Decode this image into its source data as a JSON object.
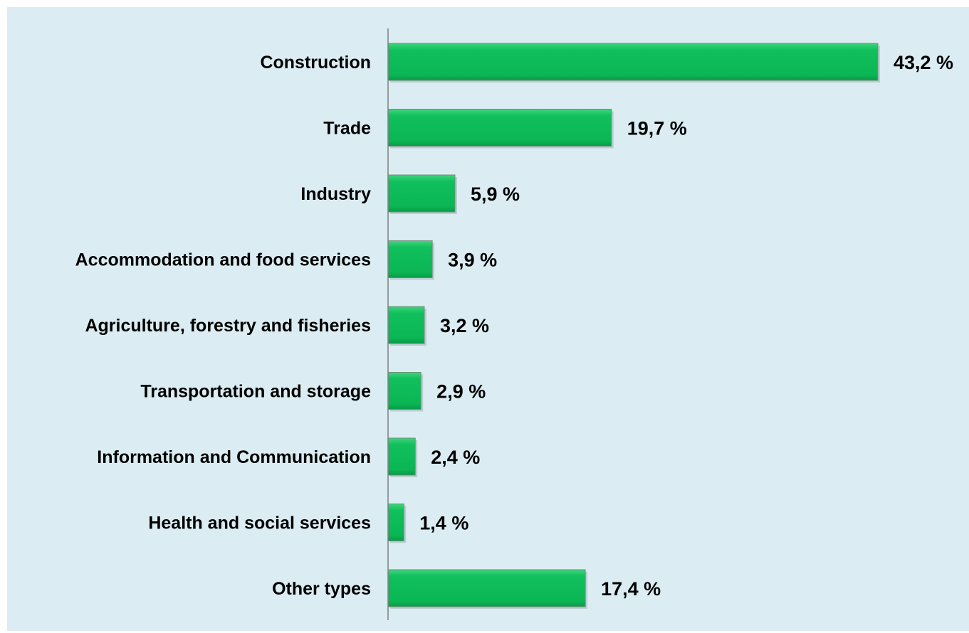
{
  "chart_data": {
    "type": "bar",
    "orientation": "horizontal",
    "categories": [
      "Construction",
      "Trade",
      "Industry",
      "Accommodation and food services",
      "Agriculture, forestry and fisheries",
      "Transportation and storage",
      "Information and Communication",
      "Health and social services",
      "Other types"
    ],
    "values": [
      43.2,
      19.7,
      5.9,
      3.9,
      3.2,
      2.9,
      2.4,
      1.4,
      17.4
    ],
    "value_labels": [
      "43,2 %",
      "19,7 %",
      "5,9 %",
      "3,9 %",
      "3,2 %",
      "2,9 %",
      "2,4 %",
      "1,4 %",
      "17,4 %"
    ],
    "unit": "%",
    "title": "",
    "xlabel": "",
    "ylabel": "",
    "xlim": [
      0,
      43.2
    ],
    "grid": false,
    "legend": "none"
  },
  "colors": {
    "panel_background": "#dbedf3",
    "bar_fill": "#0dbd59",
    "bar_edge": "#6a8f77",
    "axis": "#808080"
  }
}
